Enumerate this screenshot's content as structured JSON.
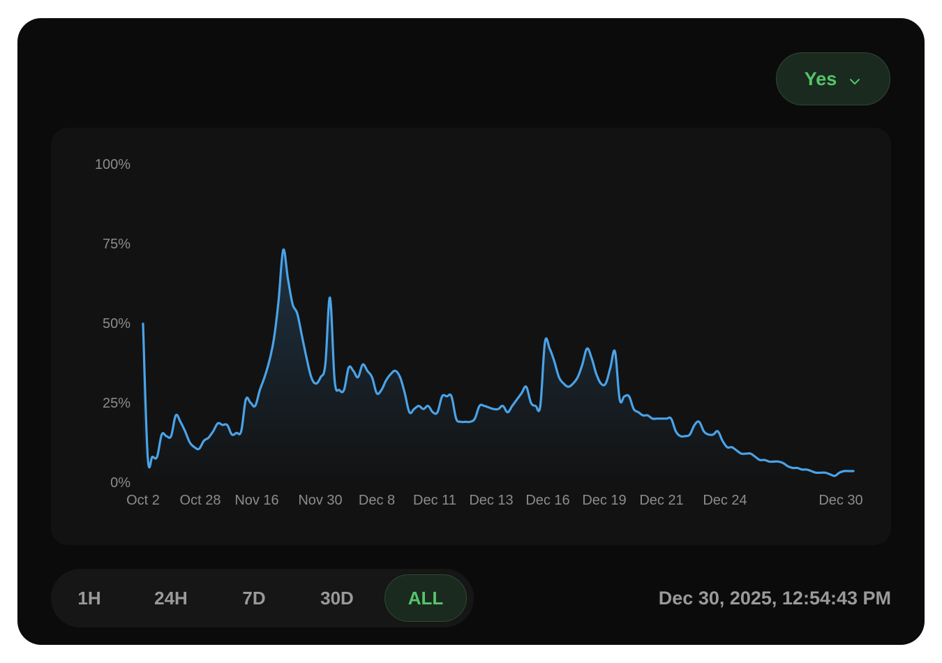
{
  "outcome_selector": {
    "label": "Yes",
    "icon": "chevron-down-icon"
  },
  "time_ranges": [
    {
      "label": "1H",
      "active": false
    },
    {
      "label": "24H",
      "active": false
    },
    {
      "label": "7D",
      "active": false
    },
    {
      "label": "30D",
      "active": false
    },
    {
      "label": "ALL",
      "active": true
    }
  ],
  "timestamp": "Dec 30, 2025, 12:54:43 PM",
  "colors": {
    "line": "#4aa3e8",
    "accent_green": "#55c56a",
    "background": "#0b0b0b",
    "panel": "#121212"
  },
  "chart_data": {
    "type": "line",
    "ylim": [
      0,
      100
    ],
    "yticks": [
      "0%",
      "25%",
      "50%",
      "75%",
      "100%"
    ],
    "xticks": [
      "Oct 2",
      "Oct 28",
      "Nov 16",
      "Nov 30",
      "Dec 8",
      "Dec 11",
      "Dec 13",
      "Dec 16",
      "Dec 19",
      "Dec 21",
      "Dec 24",
      "Dec 30"
    ],
    "grid": false,
    "legend": "none",
    "series": [
      {
        "values": [
          49.8,
          8,
          8,
          8,
          15,
          14.5,
          14.5,
          21,
          19,
          16,
          12.5,
          11,
          10.5,
          13,
          14,
          16,
          18.5,
          18,
          18,
          15,
          15.5,
          16,
          26,
          25,
          24,
          29,
          33,
          38,
          45,
          57,
          73,
          64,
          56,
          53,
          46,
          39,
          33,
          31,
          33,
          37,
          58,
          32,
          29,
          29,
          36,
          35,
          33,
          37,
          35,
          33,
          28,
          29,
          32,
          34,
          35,
          33,
          28,
          22,
          23,
          24,
          23,
          24,
          22,
          22,
          27,
          27,
          27,
          20,
          19,
          19,
          19,
          20,
          24,
          24,
          23.5,
          23,
          23,
          24,
          22,
          24,
          26,
          28,
          30,
          25,
          24,
          24,
          44,
          42,
          38,
          33,
          31,
          30,
          31,
          33,
          37,
          42,
          39,
          34,
          31,
          31,
          36,
          41,
          26,
          27,
          27,
          23,
          22,
          21,
          21,
          20,
          20,
          20,
          20,
          20,
          16,
          14.5,
          14.5,
          15,
          18,
          19,
          16,
          15,
          15,
          16,
          13,
          11,
          11,
          10,
          9,
          9,
          9,
          8,
          7,
          7,
          6.5,
          6.5,
          6.5,
          6,
          5,
          4.5,
          4.5,
          4,
          4,
          3.5,
          3,
          3,
          3,
          2.5,
          2,
          3,
          3.5,
          3.5,
          3.5
        ]
      }
    ]
  }
}
